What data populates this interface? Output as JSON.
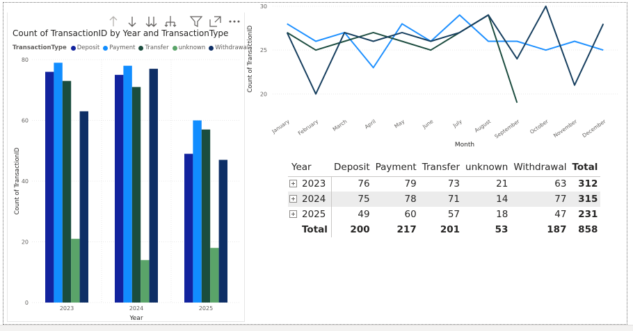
{
  "chart_data": [
    {
      "type": "bar",
      "title": "Count of TransactionID by Year and TransactionType",
      "legend_title": "TransactionType",
      "legend_position": "top-left",
      "xlabel": "Year",
      "ylabel": "Count of TransactionID",
      "ylim": [
        0,
        80
      ],
      "yticks": [
        "0",
        "20",
        "40",
        "60",
        "80"
      ],
      "grid": true,
      "categories": [
        "2023",
        "2024",
        "2025"
      ],
      "series": [
        {
          "name": "Deposit",
          "color": "#12239e",
          "values": [
            76,
            75,
            49
          ]
        },
        {
          "name": "Payment",
          "color": "#118dff",
          "values": [
            79,
            78,
            60
          ]
        },
        {
          "name": "Transfer",
          "color": "#1b4d3e",
          "values": [
            73,
            71,
            57
          ]
        },
        {
          "name": "unknown",
          "color": "#5aa469",
          "values": [
            21,
            14,
            18
          ]
        },
        {
          "name": "Withdrawal",
          "color": "#0e2f66",
          "values": [
            63,
            77,
            47
          ]
        }
      ]
    },
    {
      "type": "line",
      "xlabel": "Month",
      "ylabel": "Count of TransactionID",
      "ylim": [
        19,
        30
      ],
      "yticks": [
        "20",
        "25",
        "30"
      ],
      "grid": true,
      "categories": [
        "January",
        "February",
        "March",
        "April",
        "May",
        "June",
        "July",
        "August",
        "September",
        "October",
        "November",
        "December"
      ],
      "series": [
        {
          "color": "#1e90ff",
          "values": [
            28,
            26,
            27,
            23,
            28,
            26,
            29,
            26,
            26,
            25,
            26,
            25
          ]
        },
        {
          "color": "#1d4d40",
          "values": [
            27,
            25,
            26,
            27,
            26,
            25,
            27,
            29,
            19,
            null,
            null,
            null
          ]
        },
        {
          "color": "#173f5f",
          "values": [
            27,
            20,
            27,
            26,
            27,
            26,
            27,
            29,
            24,
            30,
            21,
            28
          ]
        }
      ]
    }
  ],
  "matrix": {
    "headers": [
      "Year",
      "Deposit",
      "Payment",
      "Transfer",
      "unknown",
      "Withdrawal",
      "Total"
    ],
    "rows": [
      {
        "year": "2023",
        "values": [
          "76",
          "79",
          "73",
          "21",
          "63"
        ],
        "total": "312"
      },
      {
        "year": "2024",
        "values": [
          "75",
          "78",
          "71",
          "14",
          "77"
        ],
        "total": "315"
      },
      {
        "year": "2025",
        "values": [
          "49",
          "60",
          "57",
          "18",
          "47"
        ],
        "total": "231"
      }
    ],
    "total_row": {
      "label": "Total",
      "values": [
        "200",
        "217",
        "201",
        "53",
        "187"
      ],
      "total": "858"
    }
  },
  "icons": {
    "toolbar": [
      "drill-up-icon",
      "drill-down-icon",
      "expand-all-down-icon",
      "expand-hierarchy-icon",
      "filter-icon",
      "focus-mode-icon",
      "more-options-icon"
    ],
    "row_expander": "plus-box-icon"
  }
}
